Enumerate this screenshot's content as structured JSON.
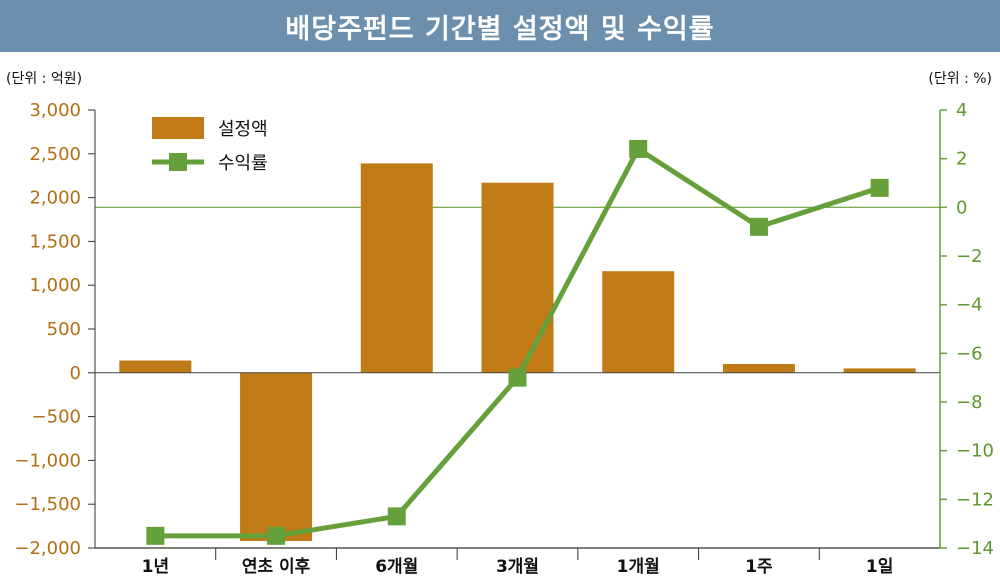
{
  "header": {
    "title": "배당주펀드 기간별 설정액 및 수익률"
  },
  "units": {
    "left": "(단위 : 억원)",
    "right": "(단위 : %)"
  },
  "colors": {
    "bar": "#c07a16",
    "line": "#66a03a",
    "title_bg": "#6b8fad",
    "left_axis": "#b36f13",
    "right_axis": "#5f9630"
  },
  "chart_data": {
    "type": "bar",
    "categories": [
      "1년",
      "연초 이후",
      "6개월",
      "3개월",
      "1개월",
      "1주",
      "1일"
    ],
    "series": [
      {
        "name": "설정액",
        "type": "bar",
        "axis": "left",
        "values": [
          140,
          -1920,
          2390,
          2170,
          1160,
          100,
          50
        ]
      },
      {
        "name": "수익률",
        "type": "line",
        "axis": "right",
        "values": [
          -13.5,
          -13.5,
          -12.7,
          -7.0,
          2.4,
          -0.8,
          0.8
        ]
      }
    ],
    "y_left": {
      "lim": [
        -2000,
        3000
      ],
      "ticks": [
        3000,
        2500,
        2000,
        1500,
        1000,
        500,
        0,
        -500,
        -1000,
        -1500,
        -2000
      ],
      "tick_labels": [
        "3,000",
        "2,500",
        "2,000",
        "1,500",
        "1,000",
        "500",
        "0",
        "−500",
        "−1,000",
        "−1,500",
        "−2,000"
      ]
    },
    "y_right": {
      "lim": [
        -14,
        4
      ],
      "ticks": [
        4,
        2,
        0,
        -2,
        -4,
        -6,
        -8,
        -10,
        -12,
        -14
      ],
      "tick_labels": [
        "4",
        "2",
        "0",
        "−2",
        "−4",
        "−6",
        "−8",
        "−10",
        "−12",
        "−14"
      ]
    },
    "legend": {
      "position": "top-left"
    }
  }
}
